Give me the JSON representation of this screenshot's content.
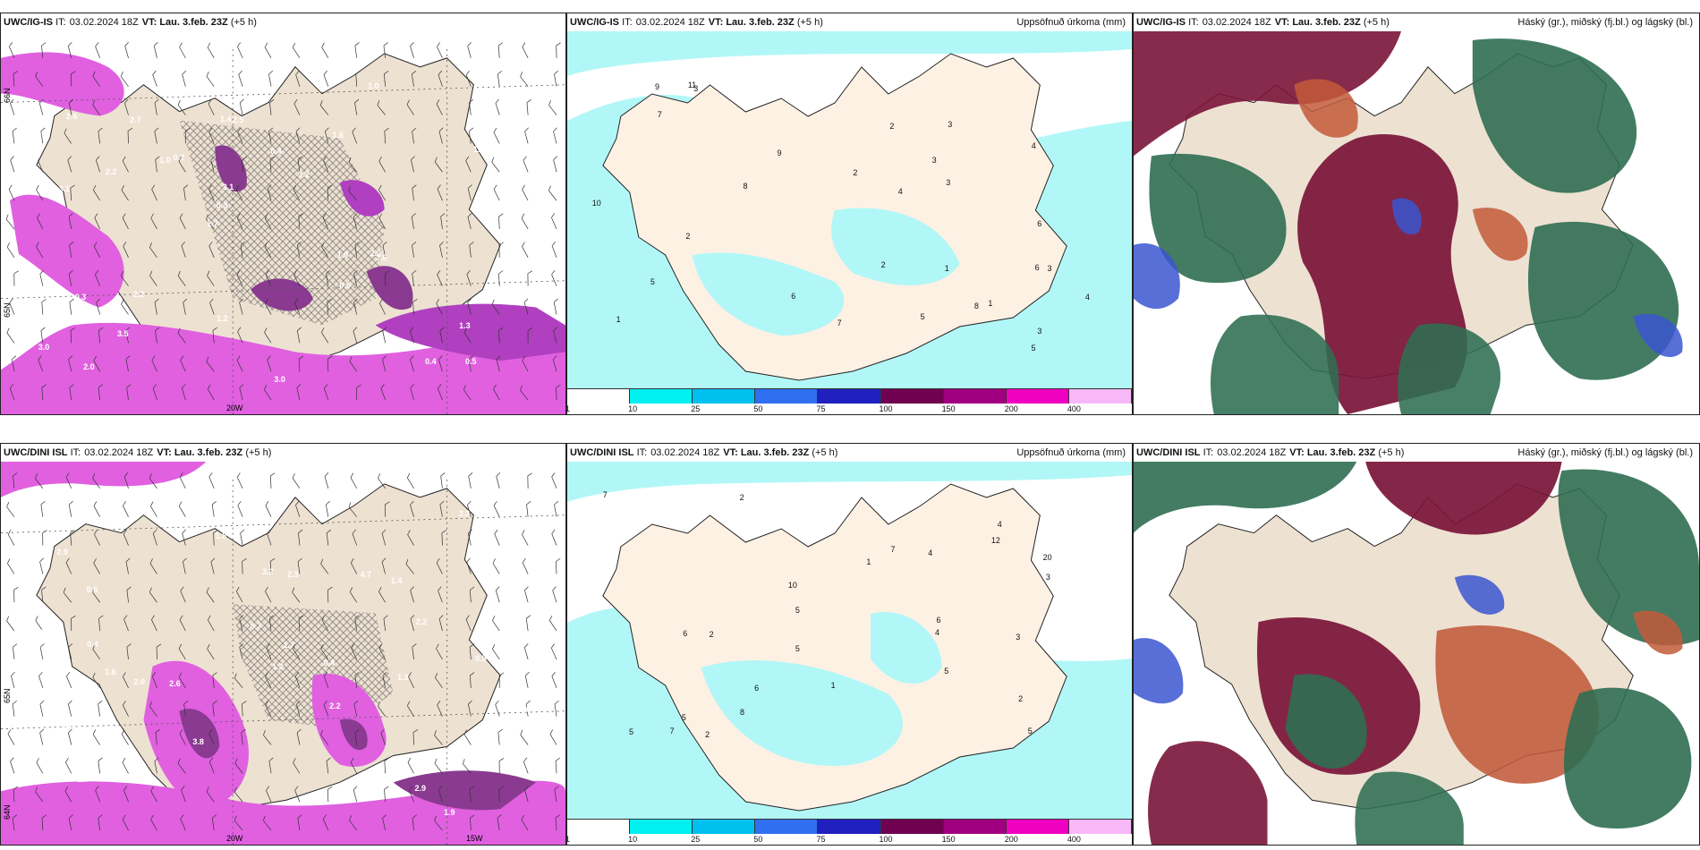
{
  "rows": [
    {
      "model": "UWC/IG-IS",
      "it_label": "IT:",
      "it_value": "03.02.2024 18Z",
      "vt_label": "VT:",
      "vt_value": "Lau. 3.feb. 23Z",
      "lead": "(+5 h)"
    },
    {
      "model": "UWC/DINI ISL",
      "it_label": "IT:",
      "it_value": "03.02.2024 18Z",
      "vt_label": "VT:",
      "vt_value": "Lau. 3.feb. 23Z",
      "lead": "(+5 h)"
    }
  ],
  "precip_title": "Uppsöfnuð úrkoma (mm)",
  "cloud_title": "Háský (gr.), miðský (fj.bl.) og lágský (bl.)",
  "axis_labels": {
    "lon_20w": "20W",
    "lon_15w": "15W",
    "lat_66n": "66N",
    "lat_65n": "65N",
    "lat_64n": "64N"
  },
  "colorbar": {
    "ticks": [
      "1",
      "10",
      "25",
      "50",
      "75",
      "100",
      "150",
      "200",
      "400"
    ],
    "colors": [
      "#ffffff",
      "#00f0f0",
      "#00c0f0",
      "#3070f0",
      "#2020c0",
      "#700050",
      "#a00080",
      "#f000c0",
      "#f8b8f8"
    ]
  },
  "colors": {
    "land": "#ede1d2",
    "land_precip": "#fdf1e4",
    "precip_light": "#b2f7f7",
    "wind_magenta": "#e060e0",
    "wind_purple": "#8a3a90",
    "cloud_high": "#2f6e52",
    "cloud_mid": "#7a1438",
    "cloud_low": "#3a56d0",
    "cloud_orange": "#c25a3a"
  },
  "wind_values_top": [
    "0.5",
    "3.1",
    "2.0",
    "1.7",
    "1.6",
    "2.0",
    "1.4",
    "0.4",
    "0.3",
    "0.2",
    "3.0",
    "3.5",
    "2.5",
    "3.2",
    "3.6",
    "2.6",
    "2.2",
    "2.0",
    "1.9",
    "1.5",
    "0.3",
    "1.2",
    "3.1",
    "2.7",
    "1.0",
    "2.2",
    "0.4",
    "1.3",
    "2.0",
    "3.0",
    "1.0",
    "2.2",
    "0.6"
  ],
  "wind_values_bottom": [
    "1.9",
    "1.6",
    "2.2",
    "2.9",
    "1.5",
    "0.6",
    "0.3",
    "2.6",
    "1.4",
    "3.2",
    "4.7",
    "2.9",
    "3.8",
    "1.8",
    "0.4",
    "0.5",
    "1.3",
    "1.7",
    "2.4",
    "2.7",
    "3.3",
    "2.3",
    "2.2",
    "1.0",
    "0.5",
    "0.4",
    "2.0",
    "1.2",
    "0.7"
  ],
  "precip_values_top": [
    "5",
    "4",
    "6",
    "4",
    "2",
    "1",
    "2",
    "3",
    "3",
    "1",
    "3",
    "2",
    "6",
    "7",
    "9",
    "6",
    "5",
    "4",
    "3",
    "1",
    "2",
    "3",
    "8",
    "9",
    "11",
    "10",
    "8",
    "5",
    "7",
    "3"
  ],
  "precip_values_bottom": [
    "5",
    "5",
    "7",
    "4",
    "5",
    "12",
    "2",
    "1",
    "1",
    "2",
    "3",
    "5",
    "4",
    "6",
    "7",
    "10",
    "2",
    "5",
    "8",
    "3",
    "4",
    "2",
    "6",
    "7",
    "5",
    "20",
    "6"
  ]
}
